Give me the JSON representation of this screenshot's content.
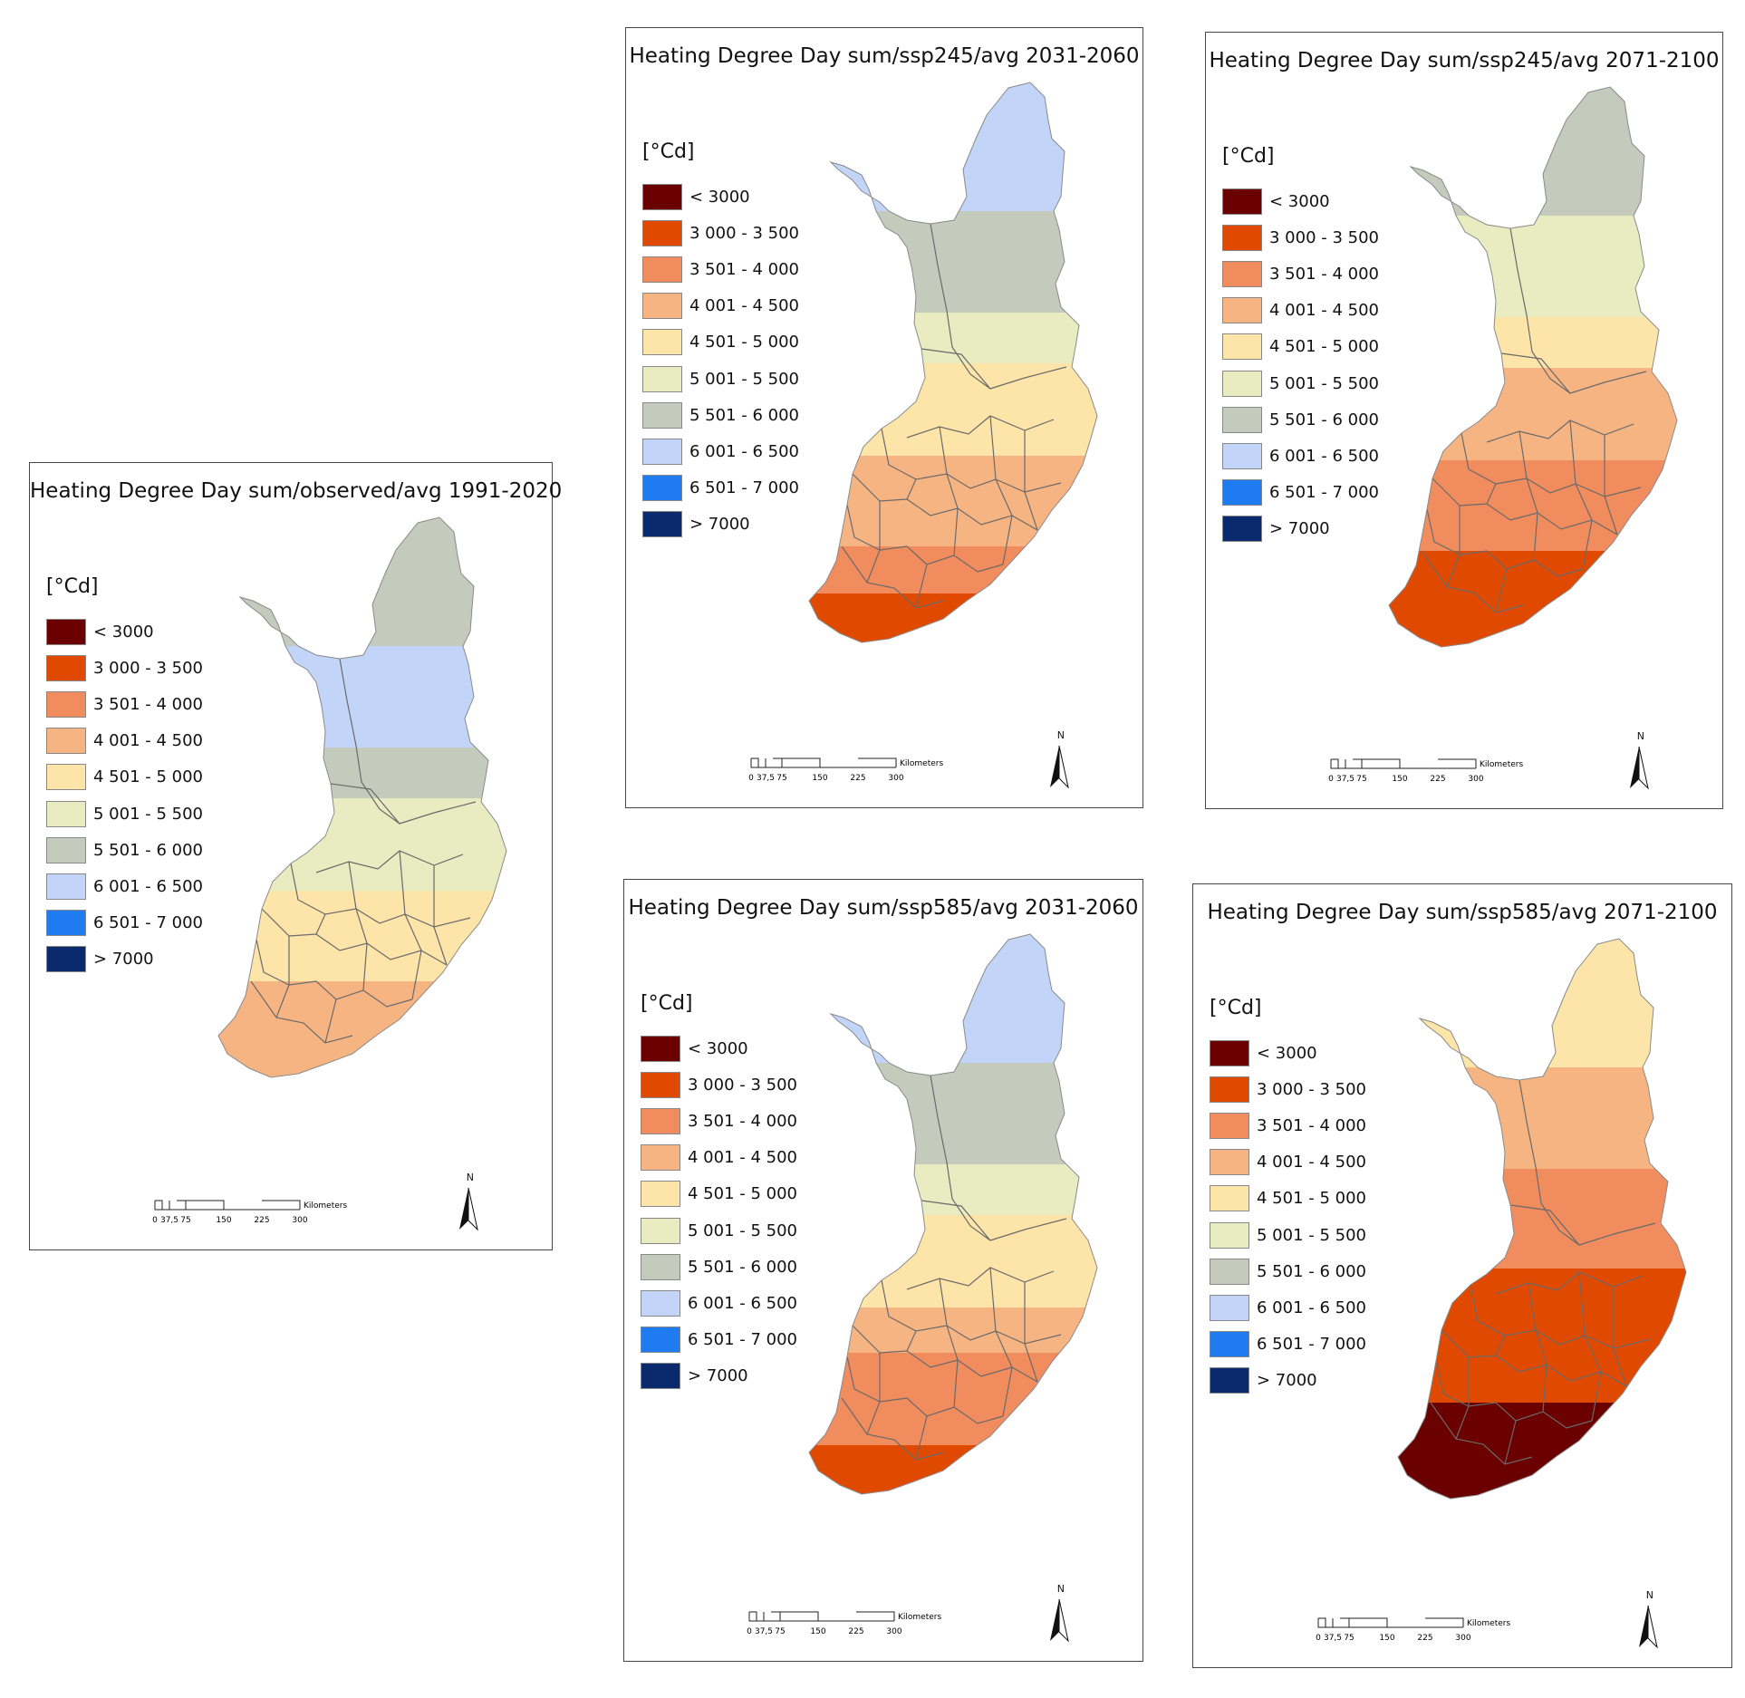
{
  "legend": {
    "unit": "[°Cd]",
    "classes": [
      {
        "label": "< 3000",
        "color": "#6b0000"
      },
      {
        "label": "3 000 - 3 500",
        "color": "#e04a00"
      },
      {
        "label": "3 501 - 4 000",
        "color": "#f08c5e"
      },
      {
        "label": "4 001 - 4 500",
        "color": "#f7b483"
      },
      {
        "label": "4 501 - 5 000",
        "color": "#fde4a8"
      },
      {
        "label": "5 001 - 5 500",
        "color": "#e8ecc0"
      },
      {
        "label": "5 501 - 6 000",
        "color": "#c4cbbd"
      },
      {
        "label": "6 001 - 6 500",
        "color": "#c2d4f7"
      },
      {
        "label": "6 501 - 7 000",
        "color": "#1f7bf0"
      },
      {
        "label": "> 7000",
        "color": "#0b2a6e"
      }
    ]
  },
  "scalebar": {
    "ticks": [
      "0",
      "37,5",
      "75",
      "150",
      "225",
      "300"
    ],
    "unit": "Kilometers"
  },
  "north_label": "N",
  "maps": [
    {
      "title": "Heating Degree Day sum/observed/avg 1991-2020",
      "zones": [
        "#c4cbbd",
        "#c2d4f7",
        "#c2d4f7",
        "#c4cbbd",
        "#e8ecc0",
        "#e8ecc0",
        "#fde4a8",
        "#fde4a8",
        "#f7b483",
        "#f7b483"
      ]
    },
    {
      "title": "Heating Degree Day sum/ssp245/avg 2031-2060",
      "zones": [
        "#c2d4f7",
        "#c4cbbd",
        "#c4cbbd",
        "#e8ecc0",
        "#fde4a8",
        "#fde4a8",
        "#f7b483",
        "#f7b483",
        "#f08c5e",
        "#e04a00"
      ]
    },
    {
      "title": "Heating Degree Day sum/ssp245/avg 2071-2100",
      "zones": [
        "#c4cbbd",
        "#e8ecc0",
        "#e8ecc0",
        "#fde4a8",
        "#f7b483",
        "#f7b483",
        "#f08c5e",
        "#f08c5e",
        "#e04a00",
        "#e04a00"
      ]
    },
    {
      "title": "Heating Degree Day sum/ssp585/avg 2031-2060",
      "zones": [
        "#c2d4f7",
        "#c4cbbd",
        "#c4cbbd",
        "#e8ecc0",
        "#fde4a8",
        "#fde4a8",
        "#f7b483",
        "#f08c5e",
        "#f08c5e",
        "#e04a00"
      ]
    },
    {
      "title": "Heating Degree Day sum/ssp585/avg 2071-2100",
      "zones": [
        "#fde4a8",
        "#f7b483",
        "#f7b483",
        "#f08c5e",
        "#f08c5e",
        "#e04a00",
        "#e04a00",
        "#e04a00",
        "#6b0000",
        "#6b0000"
      ]
    }
  ]
}
